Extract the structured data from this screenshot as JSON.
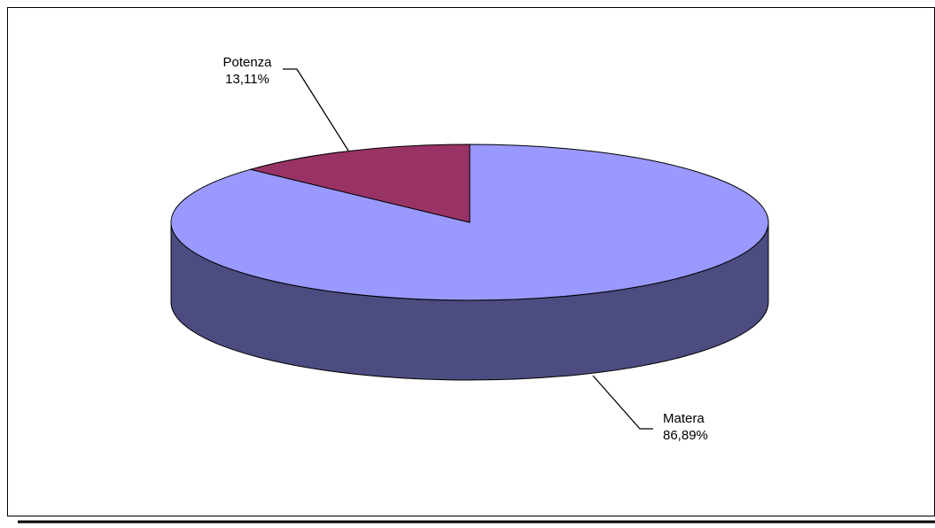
{
  "chart_data": {
    "type": "pie",
    "three_d": true,
    "title": "",
    "legend": "none",
    "slices": [
      {
        "label": "Matera",
        "value": 86.89,
        "display": "86,89%",
        "color": "#9999ff",
        "side_color": "#4c4c80"
      },
      {
        "label": "Potenza",
        "value": 13.11,
        "display": "13,11%",
        "color": "#993366",
        "side_color": "#4d1a33"
      }
    ]
  }
}
